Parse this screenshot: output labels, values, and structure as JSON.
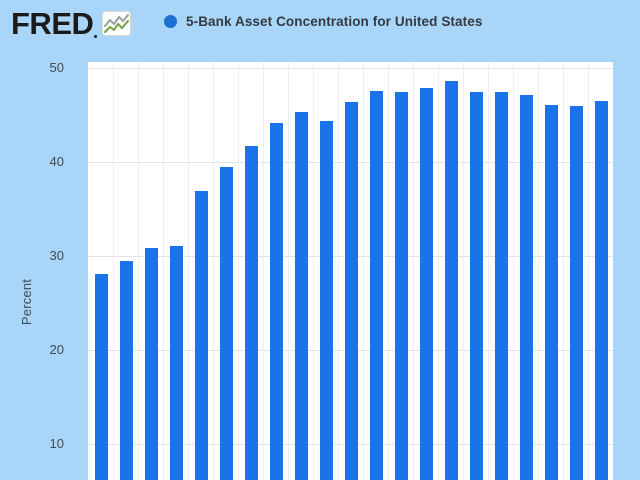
{
  "header": {
    "logo_text": "FRED",
    "series_title": "5-Bank Asset Concentration for United States",
    "legend_marker_color": "#1c70d4"
  },
  "chart": {
    "y_axis_label": "Percent"
  },
  "chart_data": {
    "type": "bar",
    "title": "5-Bank Asset Concentration for United States",
    "xlabel": "",
    "ylabel": "Percent",
    "values": [
      28.1,
      29.5,
      30.9,
      31.1,
      36.9,
      39.5,
      41.7,
      44.1,
      45.3,
      44.4,
      46.4,
      47.6,
      47.5,
      47.9,
      48.6,
      47.4,
      47.5,
      47.1,
      46.1,
      46.0,
      46.5
    ],
    "num_bars": 21,
    "y_ticks": [
      50,
      40,
      30,
      20,
      10
    ],
    "ylim_visible": [
      6.2,
      50.6
    ],
    "x_tick_labels_visible": false,
    "grid": true,
    "legend_position": "top",
    "bar_color": "#1a73e8",
    "background_color": "#a8d5f8",
    "plot_background_color": "#ffffff",
    "gridline_color": "#e3e3e3"
  }
}
